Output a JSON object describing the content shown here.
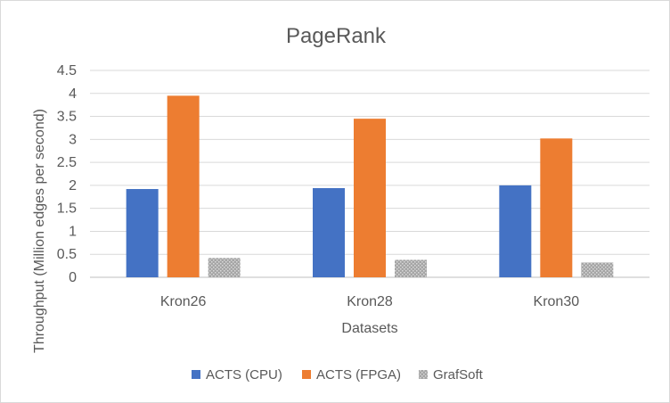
{
  "chart_data": {
    "type": "bar",
    "title": "PageRank",
    "xlabel": "Datasets",
    "ylabel": "Throughput (Million edges per second)",
    "categories": [
      "Kron26",
      "Kron28",
      "Kron30"
    ],
    "ylim": [
      0,
      4.5
    ],
    "yticks": [
      0,
      0.5,
      1,
      1.5,
      2,
      2.5,
      3,
      3.5,
      4,
      4.5
    ],
    "ytick_labels": [
      "0",
      "0.5",
      "1",
      "1.5",
      "2",
      "2.5",
      "3",
      "3.5",
      "4",
      "4.5"
    ],
    "grid": true,
    "legend_position": "bottom",
    "series": [
      {
        "name": "ACTS (CPU)",
        "color": "#4472c4",
        "pattern": "solid",
        "values": [
          1.92,
          1.94,
          2.0
        ]
      },
      {
        "name": "ACTS (FPGA)",
        "color": "#ed7d31",
        "pattern": "solid",
        "values": [
          3.95,
          3.45,
          3.02
        ]
      },
      {
        "name": "GrafSoft",
        "color": "#a5a5a5",
        "pattern": "dotted",
        "values": [
          0.42,
          0.38,
          0.32
        ]
      }
    ]
  }
}
